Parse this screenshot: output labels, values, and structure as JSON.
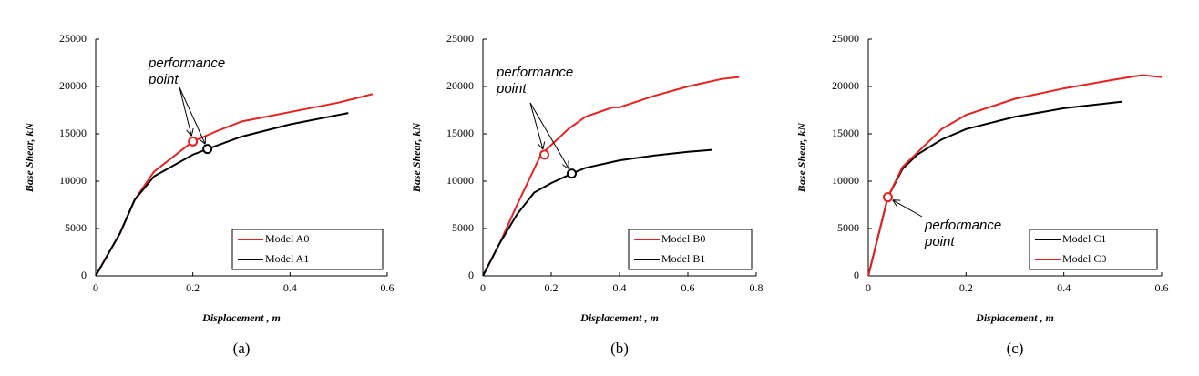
{
  "chart_data": [
    {
      "type": "line",
      "caption": "(a)",
      "x_label": "Displacement , m",
      "y_label": "Base Shear, kN",
      "xlim": [
        0,
        0.6
      ],
      "xticks": [
        0,
        0.2,
        0.4,
        0.6
      ],
      "ylim": [
        0,
        25000
      ],
      "yticks": [
        0,
        5000,
        10000,
        15000,
        20000,
        25000
      ],
      "legend": "lower right",
      "annotation": [
        "performance",
        "point"
      ],
      "series": [
        {
          "name": "Model A0",
          "color": "#e8211f",
          "x": [
            0,
            0.05,
            0.08,
            0.12,
            0.2,
            0.25,
            0.3,
            0.4,
            0.5,
            0.57
          ],
          "values": [
            0,
            4500,
            8000,
            11000,
            14200,
            15300,
            16300,
            17300,
            18300,
            19200
          ],
          "performance_point": {
            "x": 0.2,
            "y": 14200
          }
        },
        {
          "name": "Model A1",
          "color": "#000000",
          "x": [
            0,
            0.05,
            0.08,
            0.12,
            0.2,
            0.23,
            0.3,
            0.4,
            0.5,
            0.52
          ],
          "values": [
            0,
            4500,
            8000,
            10500,
            12800,
            13400,
            14700,
            16000,
            17000,
            17200
          ],
          "performance_point": {
            "x": 0.23,
            "y": 13400
          }
        }
      ]
    },
    {
      "type": "line",
      "caption": "(b)",
      "x_label": "Displacement , m",
      "y_label": "Base Shear, kN",
      "xlim": [
        0,
        0.8
      ],
      "xticks": [
        0,
        0.2,
        0.4,
        0.6,
        0.8
      ],
      "ylim": [
        0,
        25000
      ],
      "yticks": [
        0,
        5000,
        10000,
        15000,
        20000,
        25000
      ],
      "legend": "lower right",
      "annotation": [
        "performance",
        "point"
      ],
      "series": [
        {
          "name": "Model B0",
          "color": "#e8211f",
          "x": [
            0,
            0.05,
            0.1,
            0.17,
            0.25,
            0.3,
            0.38,
            0.4,
            0.5,
            0.6,
            0.7,
            0.75
          ],
          "values": [
            0,
            3500,
            7500,
            12800,
            15500,
            16800,
            17800,
            17800,
            19000,
            20000,
            20800,
            21000
          ],
          "performance_point": {
            "x": 0.18,
            "y": 12800
          }
        },
        {
          "name": "Model B1",
          "color": "#000000",
          "x": [
            0,
            0.05,
            0.1,
            0.15,
            0.2,
            0.26,
            0.3,
            0.4,
            0.5,
            0.6,
            0.67
          ],
          "values": [
            0,
            3500,
            6500,
            8800,
            9800,
            10800,
            11400,
            12200,
            12700,
            13100,
            13300
          ],
          "performance_point": {
            "x": 0.26,
            "y": 10800
          }
        }
      ]
    },
    {
      "type": "line",
      "caption": "(c)",
      "x_label": "Displacement , m",
      "y_label": "Base Shear, kN",
      "xlim": [
        0,
        0.6
      ],
      "xticks": [
        0,
        0.2,
        0.4,
        0.6
      ],
      "ylim": [
        0,
        25000
      ],
      "yticks": [
        0,
        5000,
        10000,
        15000,
        20000,
        25000
      ],
      "legend": "lower right",
      "annotation": [
        "performance",
        "point"
      ],
      "series": [
        {
          "name": "Model C1",
          "color": "#000000",
          "x": [
            0,
            0.04,
            0.07,
            0.1,
            0.15,
            0.2,
            0.3,
            0.4,
            0.52
          ],
          "values": [
            0,
            8300,
            11300,
            12800,
            14400,
            15500,
            16800,
            17700,
            18400
          ]
        },
        {
          "name": "Model C0",
          "color": "#e8211f",
          "x": [
            0,
            0.04,
            0.07,
            0.1,
            0.15,
            0.2,
            0.3,
            0.4,
            0.5,
            0.56,
            0.6
          ],
          "values": [
            0,
            8300,
            11500,
            13000,
            15500,
            17000,
            18700,
            19800,
            20700,
            21200,
            21000
          ],
          "performance_point": {
            "x": 0.04,
            "y": 8300
          }
        }
      ]
    }
  ]
}
